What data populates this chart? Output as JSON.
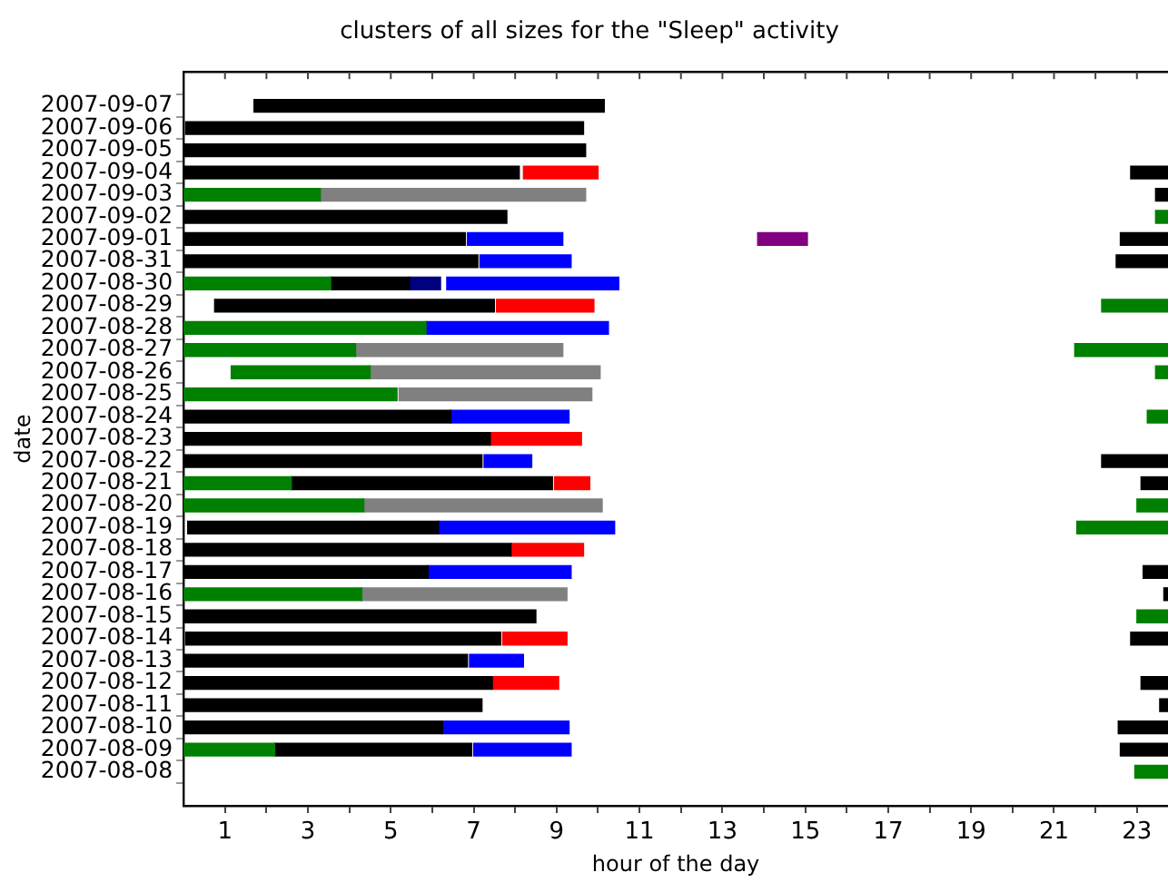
{
  "chart_data": {
    "type": "bar",
    "orientation": "horizontal",
    "title": "clusters of all sizes for the \"Sleep\" activity",
    "xlabel": "hour of the day",
    "ylabel": "date",
    "categories": [
      "2007-09-07",
      "2007-09-06",
      "2007-09-05",
      "2007-09-04",
      "2007-09-03",
      "2007-09-02",
      "2007-09-01",
      "2007-08-31",
      "2007-08-30",
      "2007-08-29",
      "2007-08-28",
      "2007-08-27",
      "2007-08-26",
      "2007-08-25",
      "2007-08-24",
      "2007-08-23",
      "2007-08-22",
      "2007-08-21",
      "2007-08-20",
      "2007-08-19",
      "2007-08-18",
      "2007-08-17",
      "2007-08-16",
      "2007-08-15",
      "2007-08-14",
      "2007-08-13",
      "2007-08-12",
      "2007-08-11",
      "2007-08-10",
      "2007-08-09",
      "2007-08-08"
    ],
    "xlim": [
      0,
      23.75
    ],
    "xticks": [
      1,
      {
        "value": 2,
        "label": null
      },
      3,
      {
        "value": 4,
        "label": null
      },
      5,
      {
        "value": 6,
        "label": null
      },
      7,
      {
        "value": 8,
        "label": null
      },
      9,
      {
        "value": 10,
        "label": null
      },
      11,
      {
        "value": 12,
        "label": null
      },
      13,
      {
        "value": 14,
        "label": null
      },
      15,
      {
        "value": 16,
        "label": null
      },
      17,
      {
        "value": 18,
        "label": null
      },
      19,
      {
        "value": 20,
        "label": null
      },
      21,
      {
        "value": 22,
        "label": null
      },
      23
    ],
    "series": [
      {
        "base": [
          1.7,
          0.05,
          0,
          0,
          0,
          0,
          0,
          0,
          0,
          0.75,
          0,
          0,
          1.15,
          0,
          0,
          0,
          0,
          0,
          0,
          0.1,
          0,
          0,
          0,
          0,
          0.05,
          0,
          0,
          0,
          0,
          0,
          22.95
        ],
        "values": [
          8.45,
          9.6,
          9.7,
          8.1,
          3.3,
          7.8,
          6.8,
          7.1,
          3.55,
          6.75,
          5.85,
          4.15,
          3.35,
          5.15,
          6.45,
          7.4,
          7.2,
          2.6,
          4.35,
          6.05,
          7.9,
          5.9,
          4.3,
          8.5,
          7.6,
          6.85,
          7.45,
          7.2,
          6.25,
          2.2,
          0.8
        ],
        "colors": [
          "#000000",
          "#000000",
          "#000000",
          "#000000",
          "#008000",
          "#000000",
          "#000000",
          "#000000",
          "#008000",
          "#000000",
          "#008000",
          "#008000",
          "#008000",
          "#008000",
          "#000000",
          "#000000",
          "#000000",
          "#008000",
          "#008000",
          "#000000",
          "#000000",
          "#000000",
          "#008000",
          "#000000",
          "#000000",
          "#000000",
          "#000000",
          "#000000",
          "#000000",
          "#008000",
          "#008000"
        ]
      },
      {
        "base": [
          null,
          null,
          null,
          8.2,
          3.3,
          23.45,
          6.85,
          7.15,
          3.55,
          7.55,
          5.85,
          4.15,
          4.5,
          5.2,
          6.45,
          7.4,
          7.25,
          2.6,
          4.35,
          6.15,
          7.9,
          5.9,
          4.3,
          23,
          7.7,
          6.9,
          7.45,
          23.55,
          6.25,
          2.2,
          null
        ],
        "values": [
          null,
          null,
          null,
          1.8,
          6.4,
          0.3,
          2.3,
          2.2,
          1.9,
          2.35,
          4.4,
          5,
          5.55,
          4.65,
          2.85,
          2.2,
          1.15,
          6.3,
          5.75,
          4.25,
          1.75,
          3.45,
          4.95,
          0.75,
          1.55,
          1.3,
          1.6,
          0.2,
          3.05,
          4.75,
          null
        ],
        "colors": [
          null,
          null,
          null,
          "#ff0000",
          "#808080",
          "#008000",
          "#0000ff",
          "#0000ff",
          "#000000",
          "#ff0000",
          "#0000ff",
          "#808080",
          "#808080",
          "#808080",
          "#0000ff",
          "#ff0000",
          "#0000ff",
          "#000000",
          "#808080",
          "#0000ff",
          "#ff0000",
          "#0000ff",
          "#808080",
          "#008000",
          "#ff0000",
          "#0000ff",
          "#ff0000",
          "#000000",
          "#0000ff",
          "#000000",
          null
        ]
      },
      {
        "base": [
          null,
          null,
          null,
          22.85,
          23.45,
          null,
          13.85,
          22.5,
          5.45,
          22.15,
          null,
          21.5,
          23.45,
          null,
          23.25,
          null,
          22.15,
          8.95,
          23,
          21.55,
          null,
          23.15,
          23.65,
          null,
          22.85,
          null,
          23.1,
          null,
          22.55,
          7,
          null
        ],
        "values": [
          null,
          null,
          null,
          0.9,
          0.3,
          null,
          1.2,
          1.25,
          0.75,
          1.6,
          null,
          2.25,
          0.3,
          null,
          0.5,
          null,
          1.6,
          0.85,
          0.75,
          2.2,
          null,
          0.6,
          0.1,
          null,
          0.9,
          null,
          0.65,
          null,
          1.2,
          2.35,
          null
        ],
        "colors": [
          null,
          null,
          null,
          "#000000",
          "#000000",
          null,
          "#800080",
          "#000000",
          "#000080",
          "#008000",
          null,
          "#008000",
          "#008000",
          null,
          "#008000",
          null,
          "#000000",
          "#ff0000",
          "#008000",
          "#008000",
          null,
          "#000000",
          "#000000",
          null,
          "#000000",
          null,
          "#000000",
          null,
          "#000000",
          "#0000ff",
          null
        ]
      },
      {
        "base": [
          null,
          null,
          null,
          null,
          null,
          null,
          22.6,
          null,
          6.35,
          null,
          null,
          null,
          null,
          null,
          null,
          null,
          null,
          23.1,
          null,
          null,
          null,
          null,
          null,
          null,
          null,
          null,
          null,
          null,
          null,
          22.6,
          null
        ],
        "values": [
          null,
          null,
          null,
          null,
          null,
          null,
          1.15,
          null,
          4.15,
          null,
          null,
          null,
          null,
          null,
          null,
          null,
          null,
          0.65,
          null,
          null,
          null,
          null,
          null,
          null,
          null,
          null,
          null,
          null,
          null,
          1.15,
          null
        ],
        "colors": [
          null,
          null,
          null,
          null,
          null,
          null,
          "#000000",
          null,
          "#0000ff",
          null,
          null,
          null,
          null,
          null,
          null,
          null,
          null,
          "#000000",
          null,
          null,
          null,
          null,
          null,
          null,
          null,
          null,
          null,
          null,
          null,
          "#000000",
          null
        ]
      }
    ]
  }
}
